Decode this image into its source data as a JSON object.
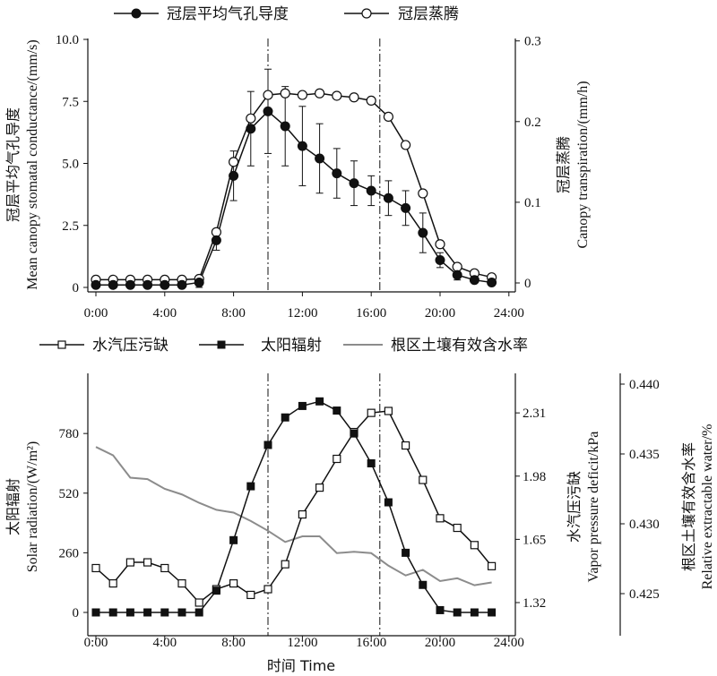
{
  "chart_data": [
    {
      "type": "line",
      "legend_position": "top",
      "x_ticks": [
        "0:00",
        "4:00",
        "8:00",
        "12:00",
        "16:00",
        "20:00",
        "24:00"
      ],
      "y_ticks": [
        "10.0",
        "7.5",
        "5.0",
        "2.5",
        "0"
      ],
      "y2_ticks": [
        "0.3",
        "0.2",
        "0.1",
        "0"
      ],
      "ylabel_cn": "冠层平均气孔导度",
      "ylabel_en": "Mean canopy stomatal conductance/(mm/s)",
      "y2label_cn": "冠层蒸腾",
      "y2label_en": "Canopy transpiration/(mm/h)",
      "ylim": [
        0,
        10
      ],
      "y2lim": [
        0,
        0.3
      ],
      "xlim": [
        0,
        24
      ],
      "vlines": [
        10,
        16.5
      ],
      "series": [
        {
          "name": "冠层平均气孔导度",
          "axis": "left",
          "marker": "filled-circle",
          "x": [
            0,
            1,
            2,
            3,
            4,
            5,
            6,
            7,
            8,
            9,
            10,
            11,
            12,
            13,
            14,
            15,
            16,
            17,
            18,
            19,
            20,
            21,
            22,
            23
          ],
          "values": [
            0.1,
            0.1,
            0.1,
            0.1,
            0.1,
            0.1,
            0.2,
            1.9,
            4.5,
            6.4,
            7.1,
            6.5,
            5.7,
            5.2,
            4.6,
            4.2,
            3.9,
            3.6,
            3.2,
            2.2,
            1.1,
            0.5,
            0.3,
            0.2
          ],
          "err": [
            0,
            0,
            0,
            0,
            0,
            0,
            0.2,
            0.4,
            1.0,
            1.5,
            1.7,
            1.6,
            1.6,
            1.4,
            1.0,
            0.9,
            0.6,
            0.7,
            0.7,
            0.8,
            0.3,
            0.2,
            0.1,
            0.1
          ]
        },
        {
          "name": "冠层蒸腾",
          "axis": "right",
          "marker": "open-circle",
          "x": [
            0,
            1,
            2,
            3,
            4,
            5,
            6,
            7,
            8,
            9,
            10,
            11,
            12,
            13,
            14,
            15,
            16,
            17,
            18,
            19,
            20,
            21,
            22,
            23
          ],
          "values": [
            0.004,
            0.004,
            0.004,
            0.004,
            0.004,
            0.004,
            0.005,
            0.063,
            0.15,
            0.204,
            0.233,
            0.235,
            0.233,
            0.235,
            0.232,
            0.23,
            0.226,
            0.206,
            0.171,
            0.111,
            0.048,
            0.02,
            0.012,
            0.007
          ]
        }
      ]
    },
    {
      "type": "line",
      "legend_position": "top",
      "x_ticks": [
        "0:00",
        "4:00",
        "8:00",
        "12:00",
        "16:00",
        "20:00",
        "24:00"
      ],
      "xlabel": "时间 Time",
      "y_ticks": [
        "780",
        "520",
        "260",
        "0"
      ],
      "y2_ticks": [
        "2.31",
        "1.98",
        "1.65",
        "1.32"
      ],
      "y3_ticks": [
        "0.440",
        "0.435",
        "0.430",
        "0.425"
      ],
      "ylabel_cn": "太阳辐射",
      "ylabel_en": "Solar radiation/(W/m²)",
      "y2label_cn": "水汽压污缺",
      "y2label_en": "Vapor pressure deficit/kPa",
      "y3label_cn": "根区土壤有效含水率",
      "y3label_en": "Relative extractable water/%",
      "ylim": [
        -60,
        1020
      ],
      "y2lim": [
        1.244,
        2.615
      ],
      "y3lim": [
        0.4233,
        0.44
      ],
      "xlim": [
        0,
        24
      ],
      "vlines": [
        10,
        16.5
      ],
      "series": [
        {
          "name": "水汽压污缺",
          "axis": "y2",
          "marker": "open-square",
          "x": [
            0,
            1,
            2,
            3,
            4,
            5,
            6,
            7,
            8,
            9,
            10,
            11,
            12,
            13,
            14,
            15,
            16,
            17,
            18,
            19,
            20,
            21,
            22,
            23
          ],
          "values": [
            1.5,
            1.42,
            1.53,
            1.53,
            1.5,
            1.42,
            1.32,
            1.39,
            1.42,
            1.36,
            1.39,
            1.52,
            1.78,
            1.92,
            2.07,
            2.21,
            2.31,
            2.32,
            2.14,
            1.96,
            1.76,
            1.71,
            1.62,
            1.51
          ]
        },
        {
          "name": "太阳辐射",
          "axis": "left",
          "marker": "filled-square",
          "x": [
            0,
            1,
            2,
            3,
            4,
            5,
            6,
            7,
            8,
            9,
            10,
            11,
            12,
            13,
            14,
            15,
            16,
            17,
            18,
            19,
            20,
            21,
            22,
            23
          ],
          "values": [
            0,
            0,
            0,
            0,
            0,
            0,
            0,
            95,
            315,
            550,
            730,
            850,
            900,
            920,
            880,
            780,
            650,
            480,
            260,
            120,
            10,
            0,
            0,
            0
          ]
        },
        {
          "name": "根区土壤有效含水率",
          "axis": "y3",
          "marker": "none",
          "x": [
            0,
            1,
            2,
            3,
            4,
            5,
            6,
            7,
            8,
            9,
            10,
            11,
            12,
            13,
            14,
            15,
            16,
            17,
            18,
            19,
            20,
            21,
            22,
            23
          ],
          "values": [
            0.4355,
            0.4349,
            0.4333,
            0.4332,
            0.4325,
            0.4321,
            0.4315,
            0.431,
            0.4308,
            0.4302,
            0.4295,
            0.4287,
            0.4291,
            0.4291,
            0.4279,
            0.428,
            0.4279,
            0.427,
            0.4263,
            0.4267,
            0.4259,
            0.4261,
            0.4256,
            0.4258
          ]
        }
      ]
    }
  ]
}
